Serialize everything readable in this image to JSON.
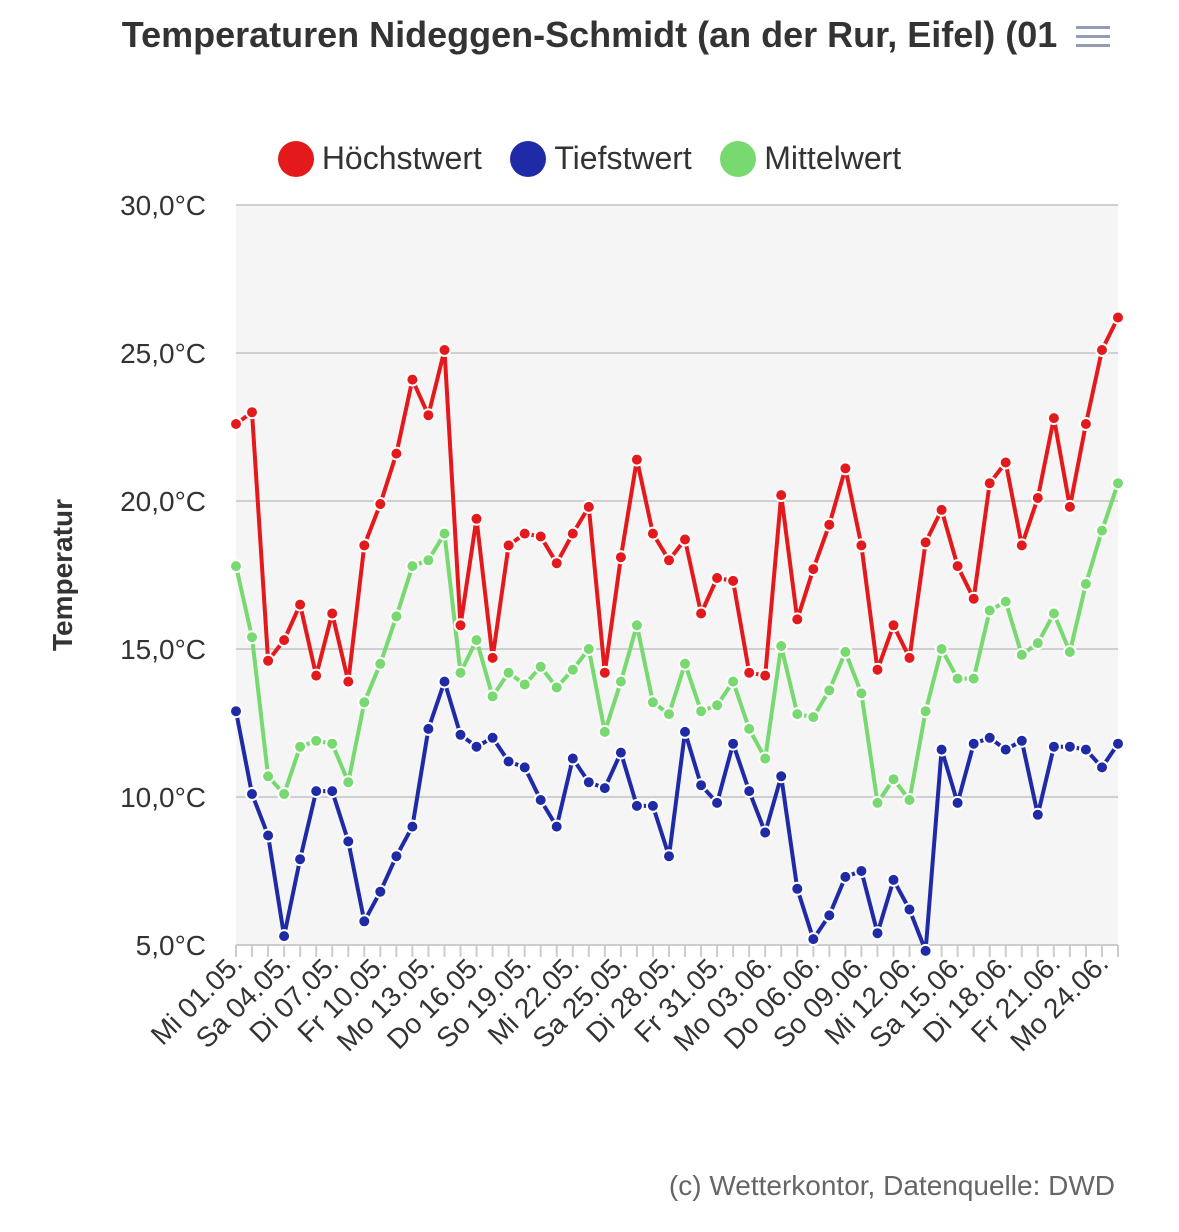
{
  "chart_data": {
    "type": "line",
    "title": "Temperaturen Nideggen-Schmidt (an der Rur, Eifel) (01",
    "ylabel": "Temperatur",
    "ylim": [
      5,
      30
    ],
    "y_ticks": [
      "5,0°C",
      "10,0°C",
      "15,0°C",
      "20,0°C",
      "25,0°C",
      "30,0°C"
    ],
    "y_tick_values": [
      5,
      10,
      15,
      20,
      25,
      30
    ],
    "x_tick_labels": [
      "Mi 01.05.",
      "Sa 04.05.",
      "Di 07.05.",
      "Fr 10.05.",
      "Mo 13.05.",
      "Do 16.05.",
      "So 19.05.",
      "Mi 22.05.",
      "Sa 25.05.",
      "Di 28.05.",
      "Fr 31.05.",
      "Mo 03.06.",
      "Do 06.06.",
      "So 09.06.",
      "Mi 12.06.",
      "Sa 15.06.",
      "Di 18.06.",
      "Fr 21.06.",
      "Mo 24.06."
    ],
    "x_tick_every": 3,
    "grid": true,
    "legend_position": "top",
    "series": [
      {
        "name": "Höchstwert",
        "color": "#e3191b",
        "values": [
          22.6,
          23.0,
          14.6,
          15.3,
          16.5,
          14.1,
          16.2,
          13.9,
          18.5,
          19.9,
          21.6,
          24.1,
          22.9,
          25.1,
          15.8,
          19.4,
          14.7,
          18.5,
          18.9,
          18.8,
          17.9,
          18.9,
          19.8,
          14.2,
          18.1,
          21.4,
          18.9,
          18.0,
          18.7,
          16.2,
          17.4,
          17.3,
          14.2,
          14.1,
          20.2,
          16.0,
          17.7,
          19.2,
          21.1,
          18.5,
          14.3,
          15.8,
          14.7,
          18.6,
          19.7,
          17.8,
          16.7,
          20.6,
          21.3,
          18.5,
          20.1,
          22.8,
          19.8,
          22.6,
          25.1,
          26.2
        ]
      },
      {
        "name": "Tiefstwert",
        "color": "#1f2aa6",
        "values": [
          12.9,
          10.1,
          8.7,
          5.3,
          7.9,
          10.2,
          10.2,
          8.5,
          5.8,
          6.8,
          8.0,
          9.0,
          12.3,
          13.9,
          12.1,
          11.7,
          12.0,
          11.2,
          11.0,
          9.9,
          9.0,
          11.3,
          10.5,
          10.3,
          11.5,
          9.7,
          9.7,
          8.0,
          12.2,
          10.4,
          9.8,
          11.8,
          10.2,
          8.8,
          10.7,
          6.9,
          5.2,
          6.0,
          7.3,
          7.5,
          5.4,
          7.2,
          6.2,
          4.8,
          11.6,
          9.8,
          11.8,
          12.0,
          11.6,
          11.9,
          9.4,
          11.7,
          11.7,
          11.6,
          11.0,
          11.8
        ]
      },
      {
        "name": "Mittelwert",
        "color": "#77d96f",
        "values": [
          17.8,
          15.4,
          10.7,
          10.1,
          11.7,
          11.9,
          11.8,
          10.5,
          13.2,
          14.5,
          16.1,
          17.8,
          18.0,
          18.9,
          14.2,
          15.3,
          13.4,
          14.2,
          13.8,
          14.4,
          13.7,
          14.3,
          15.0,
          12.2,
          13.9,
          15.8,
          13.2,
          12.8,
          14.5,
          12.9,
          13.1,
          13.9,
          12.3,
          11.3,
          15.1,
          12.8,
          12.7,
          13.6,
          14.9,
          13.5,
          9.8,
          10.6,
          9.9,
          12.9,
          15.0,
          14.0,
          14.0,
          16.3,
          16.6,
          14.8,
          15.2,
          16.2,
          14.9,
          17.2,
          19.0,
          20.6
        ]
      }
    ],
    "credits": "(c) Wetterkontor, Datenquelle: DWD"
  }
}
